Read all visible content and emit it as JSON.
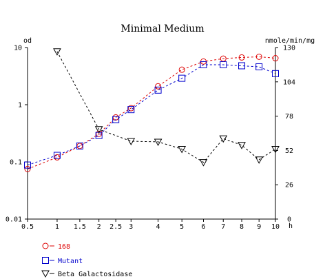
{
  "chart_data": {
    "type": "line",
    "title": "Minimal Medium",
    "left_axis": {
      "label": "od",
      "scale": "log",
      "range": [
        0.01,
        10
      ],
      "ticks": [
        {
          "value": 0.01,
          "label": "0.01"
        },
        {
          "value": 0.1,
          "label": "0.1"
        },
        {
          "value": 1,
          "label": "1"
        },
        {
          "value": 10,
          "label": "10"
        }
      ]
    },
    "right_axis": {
      "label": "nmole/min/mg",
      "scale": "linear",
      "range": [
        0,
        130
      ],
      "ticks": [
        {
          "value": 0,
          "label": "0"
        },
        {
          "value": 26,
          "label": "26"
        },
        {
          "value": 52,
          "label": "52"
        },
        {
          "value": 78,
          "label": "78"
        },
        {
          "value": 104,
          "label": "104"
        },
        {
          "value": 130,
          "label": "130"
        }
      ]
    },
    "x_axis": {
      "unit": "h",
      "range": [
        0.5,
        10
      ],
      "scale": "sqrt",
      "ticks": [
        {
          "value": 0.5,
          "label": "0.5"
        },
        {
          "value": 1,
          "label": "1"
        },
        {
          "value": 1.5,
          "label": "1.5"
        },
        {
          "value": 2,
          "label": "2"
        },
        {
          "value": 2.5,
          "label": "2.5"
        },
        {
          "value": 3,
          "label": "3"
        },
        {
          "value": 4,
          "label": "4"
        },
        {
          "value": 5,
          "label": "5"
        },
        {
          "value": 6,
          "label": "6"
        },
        {
          "value": 7,
          "label": "7"
        },
        {
          "value": 8,
          "label": "8"
        },
        {
          "value": 9,
          "label": "9"
        },
        {
          "value": 10,
          "label": "10"
        }
      ]
    },
    "series": [
      {
        "name": "168",
        "axis": "left",
        "color": "#dd0000",
        "marker": "circle",
        "x": [
          0.5,
          1,
          1.5,
          2,
          2.5,
          3,
          4,
          5,
          6,
          7,
          8,
          9,
          10
        ],
        "y": [
          0.075,
          0.12,
          0.19,
          0.31,
          0.6,
          0.87,
          2.1,
          4.1,
          5.7,
          6.4,
          6.7,
          6.9,
          6.5
        ]
      },
      {
        "name": "Mutant",
        "axis": "left",
        "color": "#0000cc",
        "marker": "square",
        "x": [
          0.5,
          1,
          1.5,
          2,
          2.5,
          3,
          4,
          5,
          6,
          7,
          8,
          9,
          10
        ],
        "y": [
          0.088,
          0.13,
          0.19,
          0.29,
          0.55,
          0.82,
          1.8,
          2.9,
          5.0,
          5.0,
          4.8,
          4.6,
          3.5
        ]
      },
      {
        "name": "Beta Galactosidase",
        "axis": "right",
        "color": "#000000",
        "marker": "triangle-down",
        "x": [
          1,
          2,
          3,
          4,
          5,
          6,
          7,
          8,
          9,
          10
        ],
        "y": [
          127,
          68,
          59,
          58.5,
          53,
          43,
          61,
          56,
          45,
          53
        ]
      }
    ],
    "legend": {
      "placement": "bottom-left",
      "entries": [
        "168",
        "Mutant",
        "Beta Galactosidase"
      ]
    }
  }
}
